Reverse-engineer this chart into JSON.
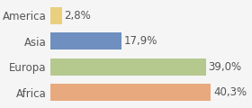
{
  "categories": [
    "America",
    "Asia",
    "Europa",
    "Africa"
  ],
  "values": [
    2.8,
    17.9,
    39.0,
    40.3
  ],
  "labels": [
    "2,8%",
    "17,9%",
    "39,0%",
    "40,3%"
  ],
  "bar_colors": [
    "#e8d07e",
    "#6e8fc0",
    "#b5c98e",
    "#e8a97e"
  ],
  "background_color": "#f5f5f5",
  "xlim": [
    0,
    50
  ],
  "bar_height": 0.65,
  "label_fontsize": 8.5,
  "tick_fontsize": 8.5
}
